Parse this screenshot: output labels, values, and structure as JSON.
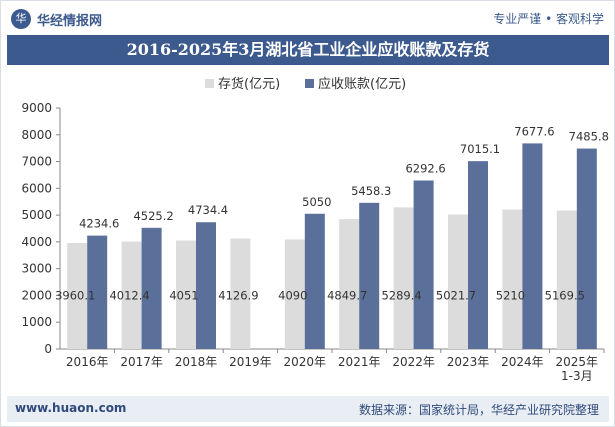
{
  "brand": {
    "logo_text": "华经",
    "name": "华经情报网",
    "slogan": "专业严谨 • 客观科学"
  },
  "footer": {
    "website": "www.huaon.com",
    "source": "数据来源：国家统计局，华经产业研究院整理"
  },
  "colors": {
    "inventory": "#dcdcdc",
    "receivables": "#5a6f9a",
    "title_bg": "#3c5a8e",
    "footer_bg": "#e9edf4"
  },
  "chart_data": {
    "type": "bar",
    "title": "2016-2025年3月湖北省工业企业应收账款及存货",
    "categories": [
      "2016年",
      "2017年",
      "2018年",
      "2019年",
      "2020年",
      "2021年",
      "2022年",
      "2023年",
      "2024年",
      "2025年\n1-3月"
    ],
    "series": [
      {
        "name": "存货(亿元)",
        "values": [
          3960.1,
          4012.4,
          4051,
          4126.9,
          4090,
          4849.7,
          5289.4,
          5021.7,
          5210,
          5169.5
        ]
      },
      {
        "name": "应收账款(亿元)",
        "values": [
          4234.6,
          4525.2,
          4734.4,
          null,
          5050,
          5458.3,
          6292.6,
          7015.1,
          7677.6,
          7485.8
        ]
      }
    ],
    "value_labels": {
      "inventory": [
        "3960.1",
        "4012.4",
        "4051",
        "4126.9",
        "4090",
        "4849.7",
        "5289.4",
        "5021.7",
        "5210",
        "5169.5"
      ],
      "receivables": [
        "4234.6",
        "4525.2",
        "4734.4",
        "",
        "5050",
        "5458.3",
        "6292.6",
        "7015.1",
        "7677.6",
        "7485.8"
      ]
    },
    "y_ticks": [
      0,
      1000,
      2000,
      3000,
      4000,
      5000,
      6000,
      7000,
      8000,
      9000
    ],
    "ylim": [
      0,
      9000
    ],
    "legend_position": "top-center",
    "grid": false
  }
}
